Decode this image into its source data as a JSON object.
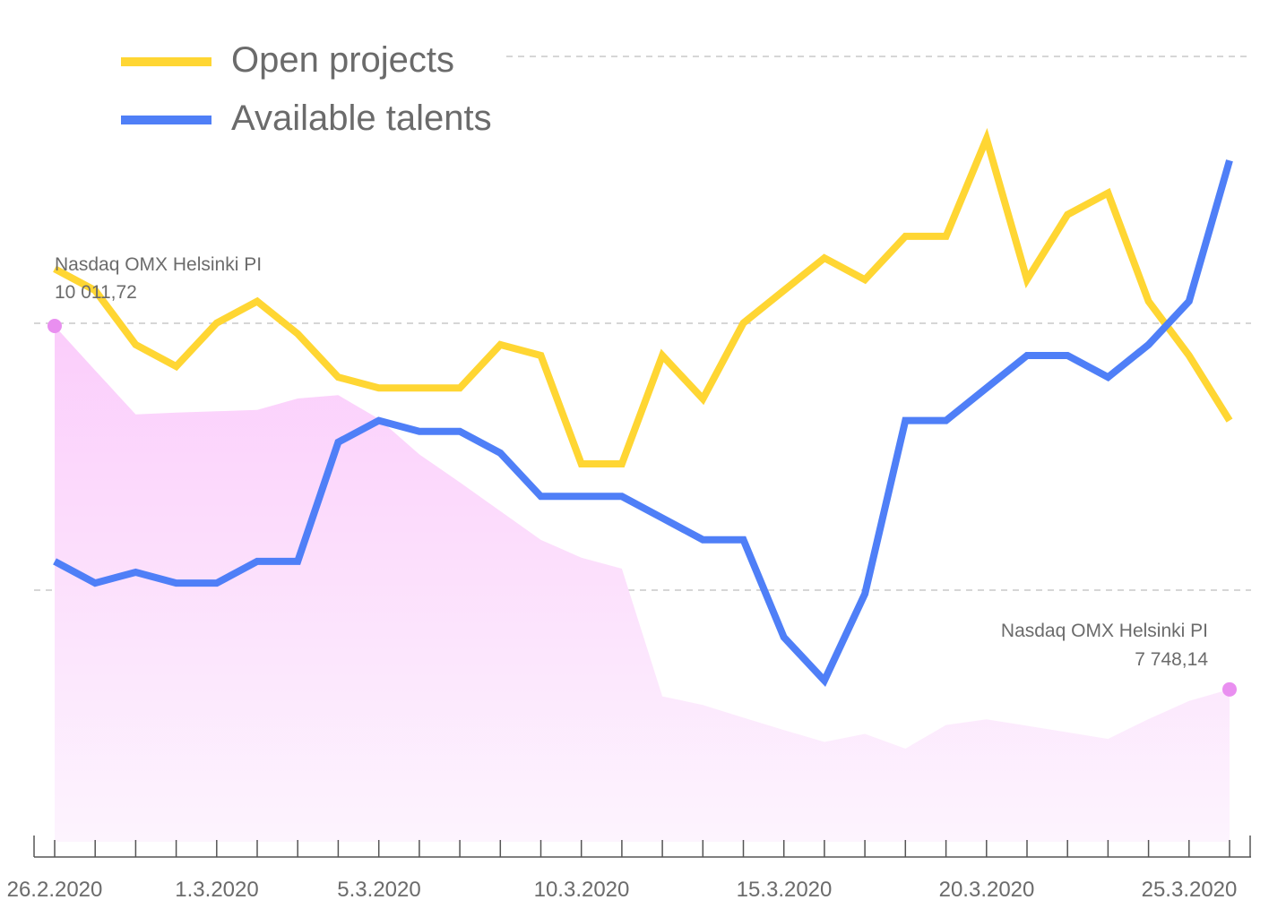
{
  "chart_data": {
    "type": "line",
    "x": [
      "26.2.2020",
      "27.2.2020",
      "28.2.2020",
      "29.2.2020",
      "1.3.2020",
      "2.3.2020",
      "3.3.2020",
      "4.3.2020",
      "5.3.2020",
      "6.3.2020",
      "7.3.2020",
      "8.3.2020",
      "9.3.2020",
      "10.3.2020",
      "11.3.2020",
      "12.3.2020",
      "13.3.2020",
      "14.3.2020",
      "15.3.2020",
      "16.3.2020",
      "17.3.2020",
      "18.3.2020",
      "19.3.2020",
      "20.3.2020",
      "21.3.2020",
      "22.3.2020",
      "23.3.2020",
      "24.3.2020",
      "25.3.2020",
      "26.3.2020"
    ],
    "xtick_labels": [
      "26.2.2020",
      "1.3.2020",
      "5.3.2020",
      "10.3.2020",
      "15.3.2020",
      "20.3.2020",
      "25.3.2020"
    ],
    "series": [
      {
        "name": "Open projects",
        "color": "#ffd633",
        "values": [
          72,
          70,
          65,
          63,
          67,
          69,
          66,
          62,
          61,
          61,
          61,
          65,
          64,
          54,
          54,
          64,
          60,
          67,
          70,
          73,
          71,
          75,
          75,
          84,
          71,
          77,
          79,
          69,
          64,
          58
        ]
      },
      {
        "name": "Available talents",
        "color": "#4f7ff7",
        "values": [
          45,
          43,
          44,
          43,
          43,
          45,
          45,
          56,
          58,
          57,
          57,
          55,
          51,
          51,
          51,
          49,
          47,
          47,
          38,
          34,
          42,
          58,
          58,
          61,
          64,
          64,
          62,
          65,
          69,
          82
        ]
      },
      {
        "name": "Nasdaq OMX Helsinki PI",
        "color": "#f2c2f7",
        "values": [
          10011.72,
          9735,
          9461,
          9472,
          9480,
          9489,
          9560,
          9581,
          9433,
          9212,
          9038,
          8859,
          8679,
          8569,
          8500,
          7705,
          7651,
          7572,
          7495,
          7421,
          7471,
          7379,
          7526,
          7562,
          7521,
          7481,
          7440,
          7563,
          7676,
          7748.14
        ]
      }
    ],
    "annotations": [
      {
        "label": "Nasdaq OMX Helsinki PI",
        "value": "10 011,72"
      },
      {
        "label": "Nasdaq OMX Helsinki PI",
        "value": "7 748,14"
      }
    ],
    "grid": "horizontal-dashed"
  }
}
